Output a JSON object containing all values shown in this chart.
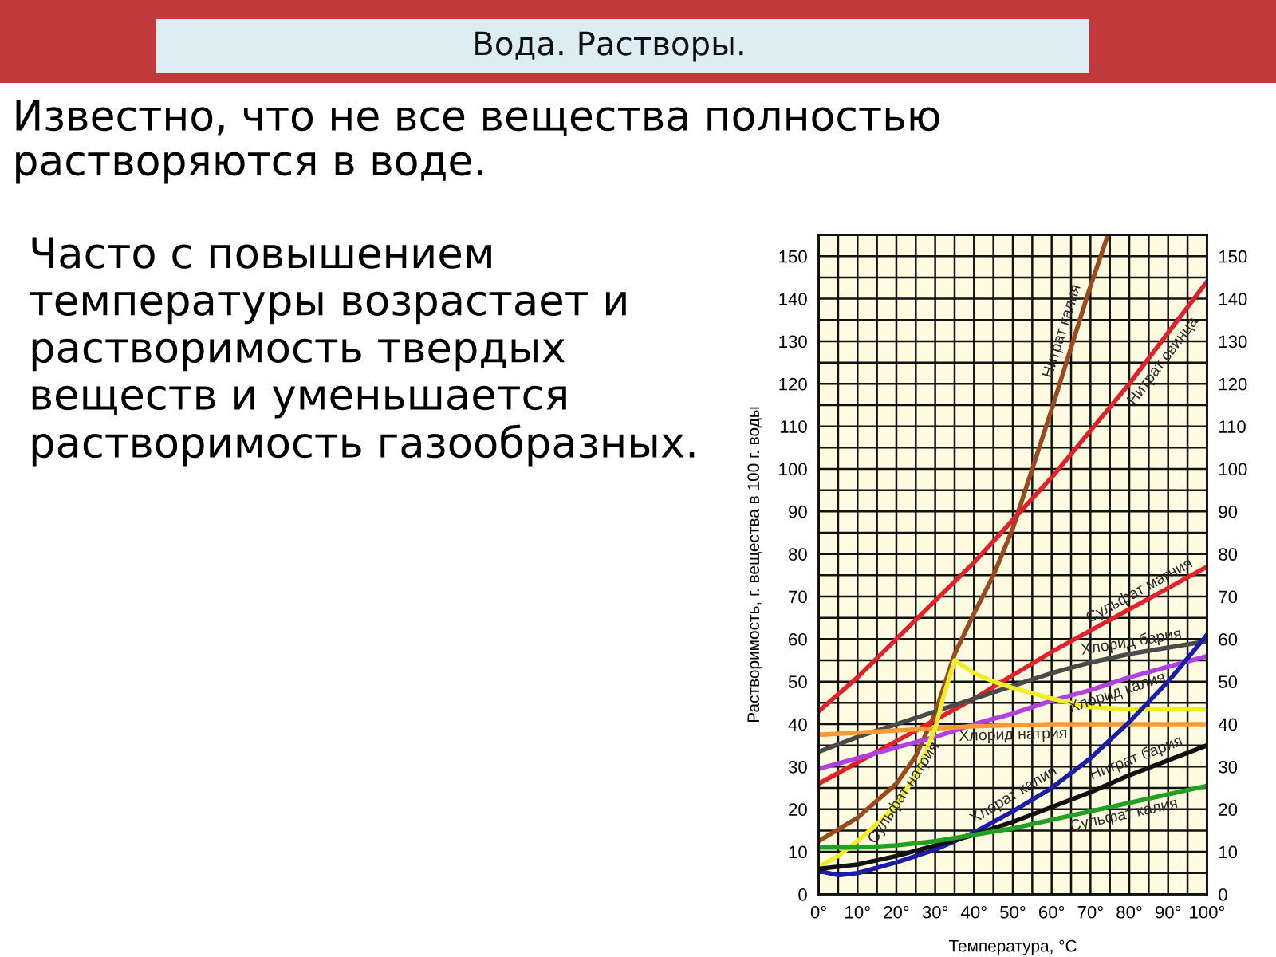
{
  "chart_data": {
    "type": "line",
    "title": "Вода. Растворы.",
    "subtitle": "Известно, что не все вещества полностью растворяются в воде.",
    "annotations": [
      "Часто с повышением температуры возрастает и растворимость твердых веществ и уменьшается растворимость газообразных."
    ],
    "xlabel": "Температура, °C",
    "ylabel": "Растворимость, г. вещества в 100 г. воды",
    "xlim": [
      0,
      100
    ],
    "xticks": [
      {
        "value": 0,
        "label": "0°"
      },
      {
        "value": 5,
        "label": null
      },
      {
        "value": 10,
        "label": "10°"
      },
      {
        "value": 15,
        "label": null
      },
      {
        "value": 20,
        "label": "20°"
      },
      {
        "value": 25,
        "label": null
      },
      {
        "value": 30,
        "label": "30°"
      },
      {
        "value": 35,
        "label": null
      },
      {
        "value": 40,
        "label": "40°"
      },
      {
        "value": 45,
        "label": null
      },
      {
        "value": 50,
        "label": "50°"
      },
      {
        "value": 55,
        "label": null
      },
      {
        "value": 60,
        "label": "60°"
      },
      {
        "value": 65,
        "label": null
      },
      {
        "value": 70,
        "label": "70°"
      },
      {
        "value": 75,
        "label": null
      },
      {
        "value": 80,
        "label": "80°"
      },
      {
        "value": 85,
        "label": null
      },
      {
        "value": 90,
        "label": "90°"
      },
      {
        "value": 95,
        "label": null
      },
      {
        "value": 100,
        "label": "100°"
      }
    ],
    "ylim": [
      0,
      155
    ],
    "yticks": [
      0,
      {
        "value": 5,
        "label": null
      },
      10,
      {
        "value": 15,
        "label": null
      },
      20,
      {
        "value": 25,
        "label": null
      },
      30,
      {
        "value": 35,
        "label": null
      },
      40,
      {
        "value": 45,
        "label": null
      },
      50,
      {
        "value": 55,
        "label": null
      },
      60,
      {
        "value": 65,
        "label": null
      },
      70,
      {
        "value": 75,
        "label": null
      },
      80,
      {
        "value": 85,
        "label": null
      },
      90,
      {
        "value": 95,
        "label": null
      },
      100,
      {
        "value": 105,
        "label": null
      },
      110,
      {
        "value": 115,
        "label": null
      },
      120,
      {
        "value": 125,
        "label": null
      },
      130,
      {
        "value": 135,
        "label": null
      },
      140,
      {
        "value": 145,
        "label": null
      },
      150
    ],
    "y2lim": [
      0,
      155
    ],
    "y2ticks": [
      0,
      10,
      20,
      30,
      40,
      50,
      60,
      70,
      80,
      90,
      100,
      110,
      120,
      130,
      140,
      150
    ],
    "grid": true,
    "series": [
      {
        "name": "Нитрат калия",
        "color": "#9a4a1c",
        "x": [
          0,
          10,
          20,
          25,
          30,
          35,
          40,
          45,
          50,
          60,
          70,
          74.5
        ],
        "values": [
          12.5,
          18,
          26,
          32.5,
          42.5,
          56.5,
          66,
          75,
          86,
          114,
          143,
          155
        ]
      },
      {
        "name": "Нитрат свинца",
        "color": "#e0202a",
        "x": [
          0,
          10,
          20,
          30,
          40,
          50,
          60,
          70,
          80,
          90,
          100
        ],
        "values": [
          43,
          51,
          60,
          69,
          78,
          88,
          98,
          109,
          120,
          132,
          144
        ]
      },
      {
        "name": "Сульфат магния",
        "color": "#e42028",
        "x": [
          0,
          10,
          20,
          30,
          40,
          50,
          60,
          70,
          80,
          90,
          100
        ],
        "values": [
          26,
          31,
          36,
          41,
          46,
          51.5,
          57,
          62,
          67,
          72,
          77
        ]
      },
      {
        "name": "Хлорид бария",
        "color": "#4a4a4a",
        "x": [
          0,
          10,
          20,
          30,
          40,
          50,
          60,
          70,
          80,
          90,
          100
        ],
        "values": [
          33.5,
          37,
          40,
          43,
          46,
          49,
          52,
          54.5,
          56.5,
          58,
          59.5
        ]
      },
      {
        "name": "Хлорид калия",
        "color": "#b040e0",
        "x": [
          0,
          10,
          20,
          30,
          40,
          50,
          60,
          70,
          80,
          90,
          100
        ],
        "values": [
          29.5,
          32,
          34.5,
          37,
          40,
          42.5,
          45.5,
          48,
          51,
          53.5,
          56
        ]
      },
      {
        "name": "Хлорид натрия",
        "color": "#ff9933",
        "x": [
          0,
          10,
          20,
          30,
          40,
          60,
          80,
          100
        ],
        "values": [
          37.5,
          38,
          38.5,
          39,
          39.5,
          40,
          40,
          40
        ]
      },
      {
        "name": "Сульфат натрия",
        "color": "#eeee22",
        "x": [
          0,
          5,
          10,
          15,
          20,
          25,
          30,
          32,
          35,
          40,
          45,
          50,
          60,
          70,
          80,
          90,
          100
        ],
        "values": [
          6.5,
          9,
          12.5,
          16.5,
          21,
          28,
          39,
          46,
          55,
          52,
          50,
          48.5,
          46,
          44,
          43.5,
          43.5,
          43.5
        ]
      },
      {
        "name": "Хлорат калия",
        "color": "#1c1ca8",
        "x": [
          0,
          5,
          10,
          20,
          30,
          40,
          50,
          60,
          70,
          80,
          90,
          100
        ],
        "values": [
          5.5,
          4.5,
          5,
          7.5,
          10.5,
          14.5,
          19.5,
          25,
          32,
          40.5,
          50,
          61
        ]
      },
      {
        "name": "Нитрат бария",
        "color": "#111111",
        "x": [
          0,
          10,
          20,
          30,
          40,
          50,
          60,
          70,
          80,
          90,
          100
        ],
        "values": [
          6,
          7,
          9,
          11.5,
          14,
          17,
          20.5,
          24,
          28,
          31.5,
          35
        ]
      },
      {
        "name": "Сульфат калия",
        "color": "#22a022",
        "x": [
          0,
          10,
          20,
          30,
          40,
          50,
          60,
          70,
          80,
          90,
          100
        ],
        "values": [
          11,
          11,
          11.5,
          12.5,
          14,
          15.5,
          17.5,
          19.5,
          21.5,
          23.5,
          25.5
        ]
      }
    ]
  }
}
